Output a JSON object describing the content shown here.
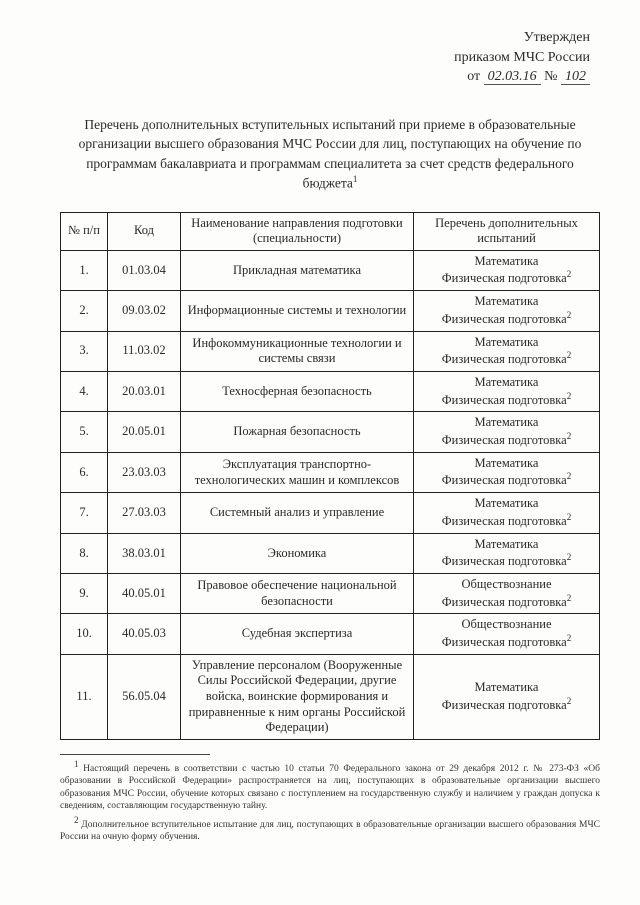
{
  "approval": {
    "line1": "Утвержден",
    "line2": "приказом МЧС России",
    "prefix": "от",
    "date": "02.03.16",
    "num_label": "№",
    "num": "102"
  },
  "title": "Перечень дополнительных вступительных испытаний при приеме в образовательные организации высшего образования МЧС России для лиц, поступающих на обучение по программам бакалавриата и программам специалитета за счет средств федерального бюджета",
  "title_sup": "1",
  "headers": {
    "n": "№ п/п",
    "code": "Код",
    "name": "Наименование направления подготовки (специальности)",
    "tests": "Перечень дополнительных испытаний"
  },
  "rows": [
    {
      "n": "1.",
      "code": "01.03.04",
      "name": "Прикладная математика",
      "t1": "Математика",
      "t2": "Физическая подготовка"
    },
    {
      "n": "2.",
      "code": "09.03.02",
      "name": "Информационные системы и технологии",
      "t1": "Математика",
      "t2": "Физическая подготовка"
    },
    {
      "n": "3.",
      "code": "11.03.02",
      "name": "Инфокоммуникационные технологии и системы связи",
      "t1": "Математика",
      "t2": "Физическая подготовка"
    },
    {
      "n": "4.",
      "code": "20.03.01",
      "name": "Техносферная безопасность",
      "t1": "Математика",
      "t2": "Физическая подготовка"
    },
    {
      "n": "5.",
      "code": "20.05.01",
      "name": "Пожарная безопасность",
      "t1": "Математика",
      "t2": "Физическая подготовка"
    },
    {
      "n": "6.",
      "code": "23.03.03",
      "name": "Эксплуатация транспортно-технологических машин и комплексов",
      "t1": "Математика",
      "t2": "Физическая подготовка"
    },
    {
      "n": "7.",
      "code": "27.03.03",
      "name": "Системный анализ и управление",
      "t1": "Математика",
      "t2": "Физическая подготовка"
    },
    {
      "n": "8.",
      "code": "38.03.01",
      "name": "Экономика",
      "t1": "Математика",
      "t2": "Физическая подготовка"
    },
    {
      "n": "9.",
      "code": "40.05.01",
      "name": "Правовое обеспечение национальной безопасности",
      "t1": "Обществознание",
      "t2": "Физическая подготовка"
    },
    {
      "n": "10.",
      "code": "40.05.03",
      "name": "Судебная экспертиза",
      "t1": "Обществознание",
      "t2": "Физическая подготовка"
    },
    {
      "n": "11.",
      "code": "56.05.04",
      "name": "Управление персоналом (Вооруженные Силы Российской Федерации, другие войска, воинские формирования и приравненные к ним органы Российской Федерации)",
      "t1": "Математика",
      "t2": "Физическая подготовка"
    }
  ],
  "test_sup": "2",
  "footnotes": {
    "f1_sup": "1",
    "f1": "Настоящий перечень в соответствии с частью 10 статьи 70 Федерального закона от 29 декабря 2012 г. № 273-ФЗ «Об образовании в Российской Федерации» распространяется на лиц, поступающих в образовательные организации высшего образования МЧС России, обучение которых связано с поступлением на государственную службу и наличием у граждан допуска к сведениям, составляющим государственную тайну.",
    "f2_sup": "2",
    "f2": "Дополнительное вступительное испытание для лиц, поступающих в образовательные организации высшего образования МЧС России на очную форму обучения."
  }
}
